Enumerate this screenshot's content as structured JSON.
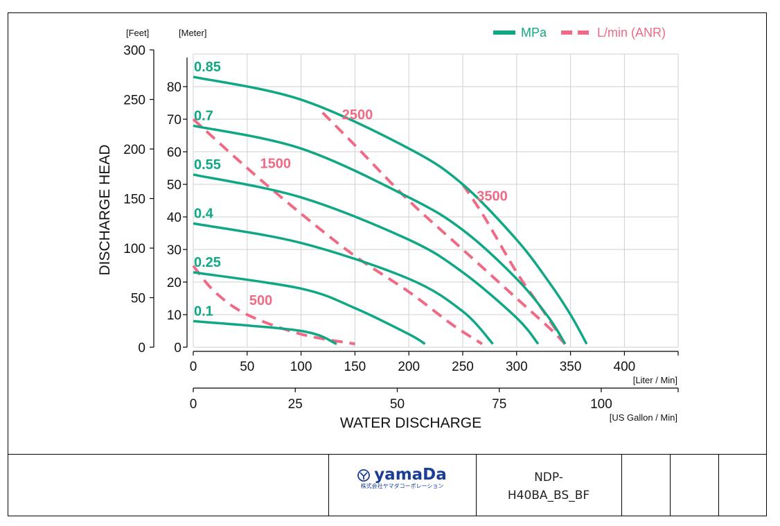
{
  "chart_data": {
    "type": "line",
    "axis_titles": {
      "y": "DISCHARGE HEAD",
      "x": "WATER DISCHARGE",
      "y_left_unit": "[Feet]",
      "y_right_unit": "[Meter]",
      "x_top_unit": "[Liter / Min]",
      "x_bottom_unit": "[US Gallon / Min]"
    },
    "x_liter_ticks": [
      0,
      50,
      100,
      150,
      200,
      250,
      300,
      350,
      400
    ],
    "x_gallon_ticks": [
      0,
      25,
      50,
      75,
      100
    ],
    "y_feet_ticks": [
      0,
      50,
      100,
      150,
      200,
      250,
      300
    ],
    "y_meter_ticks": [
      0,
      10,
      20,
      30,
      40,
      50,
      60,
      70,
      80
    ],
    "xlim": [
      0,
      450
    ],
    "ylim_meter": [
      0,
      90
    ],
    "grid": true,
    "legend": {
      "position": "top-right",
      "items": [
        {
          "label": "MPa",
          "color": "#0fa784",
          "style": "solid"
        },
        {
          "label": "L/min (ANR)",
          "color": "#ef6a84",
          "style": "dashed"
        }
      ]
    },
    "pressure_series": [
      {
        "name": "0.85",
        "x": [
          0,
          100,
          200,
          250,
          300,
          330,
          350,
          365
        ],
        "y": [
          83,
          76,
          61,
          50,
          33,
          20,
          10,
          1
        ]
      },
      {
        "name": "0.7",
        "x": [
          0,
          100,
          200,
          250,
          300,
          330,
          345
        ],
        "y": [
          68,
          61,
          46,
          36,
          21,
          9,
          1
        ]
      },
      {
        "name": "0.55",
        "x": [
          0,
          100,
          200,
          250,
          300,
          320
        ],
        "y": [
          53,
          46,
          33,
          23,
          9,
          1
        ]
      },
      {
        "name": "0.4",
        "x": [
          0,
          100,
          200,
          250,
          278
        ],
        "y": [
          38,
          32,
          21,
          11,
          1
        ]
      },
      {
        "name": "0.25",
        "x": [
          0,
          100,
          150,
          200,
          215
        ],
        "y": [
          23,
          18,
          12,
          4,
          1
        ]
      },
      {
        "name": "0.1",
        "x": [
          0,
          100,
          133
        ],
        "y": [
          8,
          5,
          1
        ]
      }
    ],
    "airflow_series": [
      {
        "name": "500",
        "x": [
          0,
          20,
          50,
          100,
          150
        ],
        "y": [
          25,
          17,
          10,
          4,
          1
        ]
      },
      {
        "name": "1500",
        "x": [
          0,
          50,
          100,
          150,
          200,
          240,
          268
        ],
        "y": [
          70,
          55,
          41,
          28,
          17,
          7,
          1
        ]
      },
      {
        "name": "2500",
        "x": [
          120,
          150,
          200,
          250,
          300,
          330,
          345
        ],
        "y": [
          72,
          62,
          45,
          30,
          15,
          6,
          1
        ]
      },
      {
        "name": "3500",
        "x": [
          250,
          270,
          300,
          325,
          345
        ],
        "y": [
          50,
          40,
          23,
          11,
          1
        ]
      }
    ]
  },
  "footer": {
    "logo_text": "yamaDa",
    "logo_subtext": "株式会社ヤマダコーポレーション",
    "model_number": "NDP-H40BA_BS_BF"
  },
  "colors": {
    "pressure": "#0fa784",
    "airflow": "#ef6a84",
    "grid": "#cfcfcf",
    "logo": "#1a3e96"
  }
}
